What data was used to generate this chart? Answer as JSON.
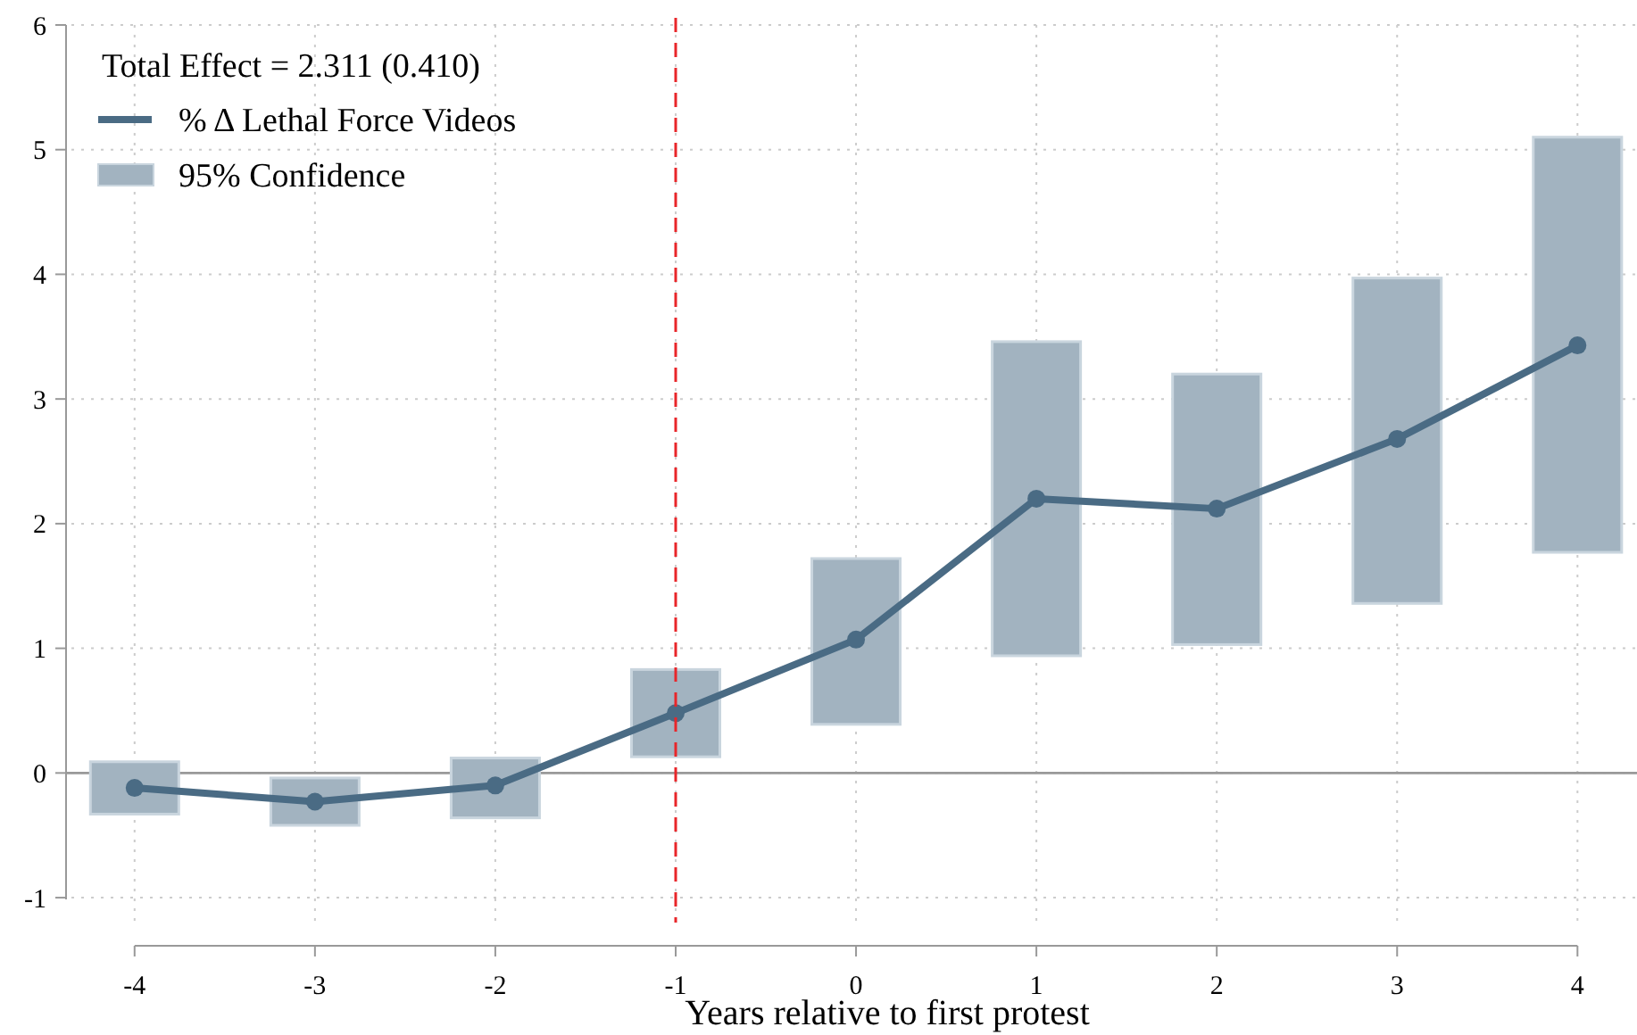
{
  "chart_data": {
    "type": "line",
    "xlabel": "Years relative to first protest",
    "x": [
      -4,
      -3,
      -2,
      -1,
      0,
      1,
      2,
      3,
      4
    ],
    "series": [
      {
        "name": "95% Confidence",
        "type": "bar",
        "color": "#a2b3c0",
        "base": [
          -0.33,
          -0.42,
          -0.36,
          0.13,
          0.39,
          0.94,
          1.03,
          1.36,
          1.77
        ],
        "values": [
          0.42,
          0.38,
          0.48,
          0.7,
          1.33,
          2.52,
          2.17,
          2.61,
          3.33
        ]
      },
      {
        "name": "% Δ Lethal Force Videos",
        "color": "#4a6b84",
        "values": [
          -0.12,
          -0.23,
          -0.1,
          0.48,
          1.07,
          2.2,
          2.12,
          2.68,
          3.43
        ]
      }
    ],
    "xlim": [
      -4.38,
      4.33
    ],
    "ylim": [
      -1.2,
      6
    ],
    "xticks": [
      -4,
      -3,
      -2,
      -1,
      0,
      1,
      2,
      3,
      4
    ],
    "yticks": [
      -1,
      0,
      1,
      2,
      3,
      4,
      5,
      6
    ],
    "ref_lines": [
      {
        "axis": "x",
        "value": -1,
        "color": "#e8262a",
        "line_style": "dashed"
      },
      {
        "axis": "y",
        "value": 0,
        "color": "#999999",
        "line_style": "solid"
      }
    ],
    "annotations": [
      "Total Effect = 2.311 (0.410)"
    ],
    "grid": true,
    "legend": "top left",
    "marker": "circle",
    "line_style": "solid"
  }
}
